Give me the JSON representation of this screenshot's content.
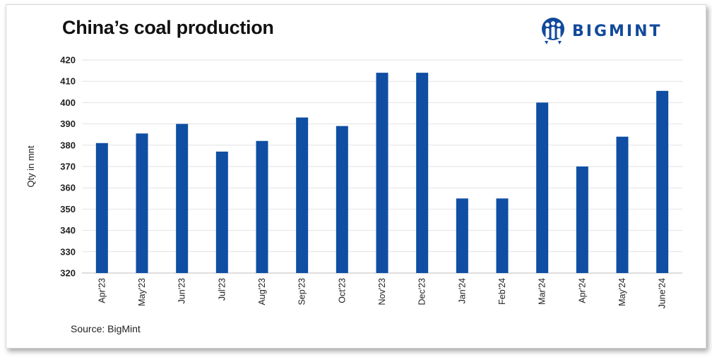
{
  "chart_data": {
    "type": "bar",
    "title": "China’s coal production",
    "ylabel": "Qty in mnt",
    "xlabel": "",
    "categories": [
      "Apr'23",
      "May'23",
      "Jun'23",
      "Jul'23",
      "Aug'23",
      "Sep'23",
      "Oct'23",
      "Nov'23",
      "Dec'23",
      "Jan'24",
      "Feb'24",
      "Mar'24",
      "Apr'24",
      "May'24",
      "June'24"
    ],
    "values": [
      381,
      385.5,
      390,
      377,
      382,
      393,
      389,
      414,
      414,
      355,
      355,
      400,
      370,
      384,
      405.5
    ],
    "ylim": [
      320,
      420
    ],
    "yticks": [
      320,
      330,
      340,
      350,
      360,
      370,
      380,
      390,
      400,
      410,
      420
    ],
    "grid": true,
    "legend": "none",
    "bar_color": "#0f4ea3",
    "source": "Source: BigMint"
  },
  "logo": {
    "text": "BIGMINT",
    "color": "#124a9b"
  }
}
